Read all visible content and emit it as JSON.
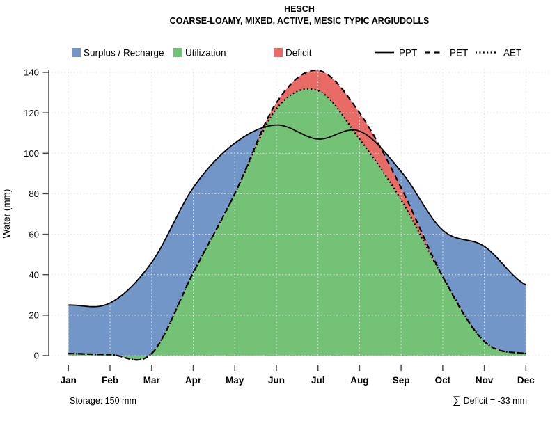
{
  "title": "HESCH",
  "subtitle": "COARSE-LOAMY, MIXED, ACTIVE, MESIC TYPIC ARGIUDOLLS",
  "legend": {
    "areas": [
      {
        "label": "Surplus / Recharge",
        "color": "#7396c8"
      },
      {
        "label": "Utilization",
        "color": "#74c276"
      },
      {
        "label": "Deficit",
        "color": "#e96b66"
      }
    ],
    "lines": [
      {
        "label": "PPT",
        "style": "solid"
      },
      {
        "label": "PET",
        "style": "dashed"
      },
      {
        "label": "AET",
        "style": "dotted"
      }
    ]
  },
  "footer": {
    "storage": "Storage: 150 mm",
    "deficit_symbol": "∑",
    "deficit_label": " Deficit = -33 mm"
  },
  "chart_data": {
    "type": "area",
    "title": "HESCH",
    "subtitle": "COARSE-LOAMY, MIXED, ACTIVE, MESIC TYPIC ARGIUDOLLS",
    "x": [
      "Jan",
      "Feb",
      "Mar",
      "Apr",
      "May",
      "Jun",
      "Jul",
      "Aug",
      "Sep",
      "Oct",
      "Nov",
      "Dec"
    ],
    "xlabel": "",
    "ylabel": "Water (mm)",
    "ylim": [
      0,
      140
    ],
    "yticks": [
      0,
      20,
      40,
      60,
      80,
      100,
      120,
      140
    ],
    "grid": "dotted-both-axes",
    "legend_position": "top",
    "series": [
      {
        "name": "PPT",
        "style": "solid",
        "color": "#000000",
        "values": [
          25,
          26,
          46,
          83,
          105,
          114,
          107,
          111,
          91,
          62,
          54,
          35
        ]
      },
      {
        "name": "PET",
        "style": "dashed",
        "color": "#000000",
        "values": [
          1,
          0.5,
          1,
          41,
          80,
          125,
          141,
          120,
          83,
          39,
          7,
          1
        ]
      },
      {
        "name": "AET",
        "style": "dotted",
        "color": "#000000",
        "values": [
          1,
          0.5,
          1,
          41,
          80,
          122,
          131,
          107,
          77,
          39,
          7,
          1
        ]
      }
    ],
    "areas": [
      {
        "name": "Surplus / Recharge",
        "color": "#7396c8",
        "between": [
          "PPT",
          "PET"
        ],
        "where": "PPT > PET"
      },
      {
        "name": "Utilization",
        "color": "#74c276",
        "between": [
          "AET",
          "baseline-0"
        ]
      },
      {
        "name": "Deficit",
        "color": "#e96b66",
        "between": [
          "PET",
          "AET"
        ],
        "where": "PET > AET"
      }
    ],
    "annotations": {
      "storage": "Storage: 150 mm",
      "deficit_sum": "∑ Deficit = -33 mm"
    }
  }
}
